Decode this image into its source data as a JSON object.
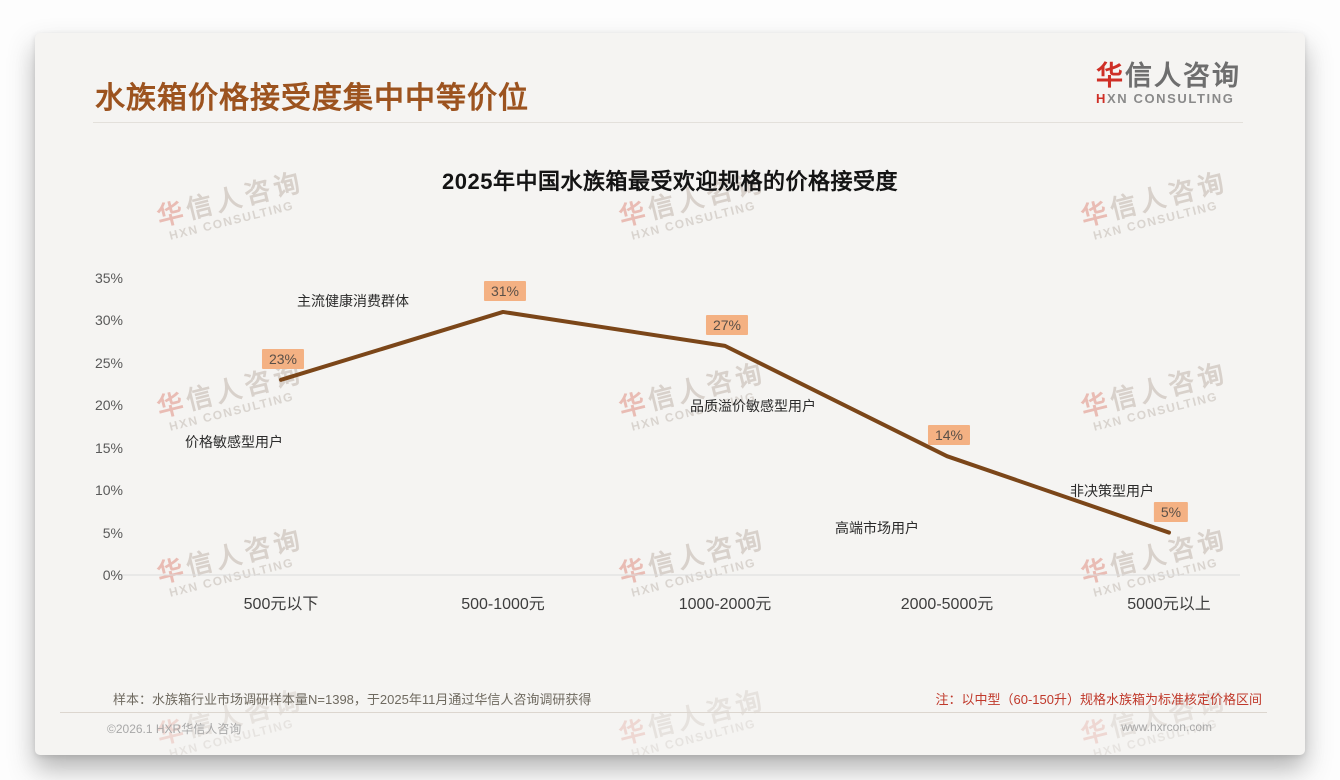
{
  "header": {
    "title": "水族箱价格接受度集中中等价位",
    "logo_cn_first": "华",
    "logo_cn_rest": "信人咨询",
    "logo_en_first": "H",
    "logo_en_rest": "XN CONSULTING"
  },
  "watermark": {
    "cn_first": "华",
    "cn_rest": "信人咨询",
    "en": "HXN CONSULTING"
  },
  "chart_data": {
    "type": "line",
    "title": "2025年中国水族箱最受欢迎规格的价格接受度",
    "categories": [
      "500元以下",
      "500-1000元",
      "1000-2000元",
      "2000-5000元",
      "5000元以上"
    ],
    "values": [
      23,
      31,
      27,
      14,
      5
    ],
    "unit": "%",
    "y_ticks": [
      0,
      5,
      10,
      15,
      20,
      25,
      30,
      35
    ],
    "ylim": [
      0,
      35
    ],
    "grid": "off",
    "legend": "none",
    "annotations": [
      "价格敏感型用户",
      "主流健康消费群体",
      "品质溢价敏感型用户",
      "高端市场用户",
      "非决策型用户"
    ],
    "line_color": "#7b4619",
    "label_bg": "#f4b183",
    "axis_color": "#dcdcdc"
  },
  "notes": {
    "left": "样本：水族箱行业市场调研样本量N=1398，于2025年11月通过华信人咨询调研获得",
    "right": "注：以中型（60-150升）规格水族箱为标准核定价格区间"
  },
  "footer": {
    "left": "©2026.1 HXR华信人咨询",
    "right": "www.hxrcon.com"
  },
  "colors": {
    "accent_brown": "#9c531f",
    "note_red": "#c0392b",
    "logo_red": "#cf2f26"
  }
}
